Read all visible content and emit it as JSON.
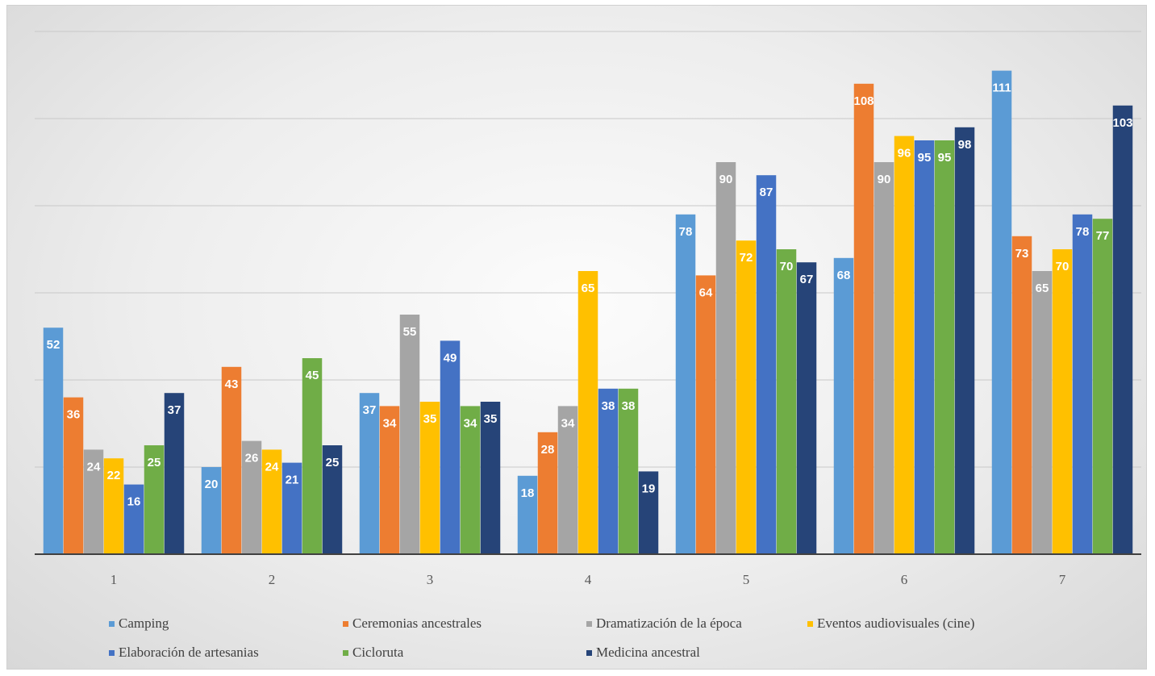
{
  "chart_data": {
    "type": "bar",
    "categories": [
      "1",
      "2",
      "3",
      "4",
      "5",
      "6",
      "7"
    ],
    "series": [
      {
        "name": "Camping",
        "color": "#5b9bd5",
        "values": [
          52,
          20,
          37,
          18,
          78,
          68,
          111
        ]
      },
      {
        "name": "Ceremonias ancestrales",
        "color": "#ed7d31",
        "values": [
          36,
          43,
          34,
          28,
          64,
          108,
          73
        ]
      },
      {
        "name": "Dramatización de la época",
        "color": "#a5a5a5",
        "values": [
          24,
          26,
          55,
          34,
          90,
          90,
          65
        ]
      },
      {
        "name": "Eventos audiovisuales (cine)",
        "color": "#ffc000",
        "values": [
          22,
          24,
          35,
          65,
          72,
          96,
          70
        ]
      },
      {
        "name": "Elaboración de artesanias",
        "color": "#4472c4",
        "values": [
          16,
          21,
          49,
          38,
          87,
          95,
          78
        ]
      },
      {
        "name": "Cicloruta",
        "color": "#70ad47",
        "values": [
          25,
          45,
          34,
          38,
          70,
          95,
          77
        ]
      },
      {
        "name": "Medicina ancestral",
        "color": "#264478",
        "values": [
          37,
          25,
          35,
          19,
          67,
          98,
          103
        ]
      }
    ],
    "ylim": [
      0,
      120
    ],
    "grid": true,
    "legend_position": "bottom",
    "data_labels": true
  }
}
